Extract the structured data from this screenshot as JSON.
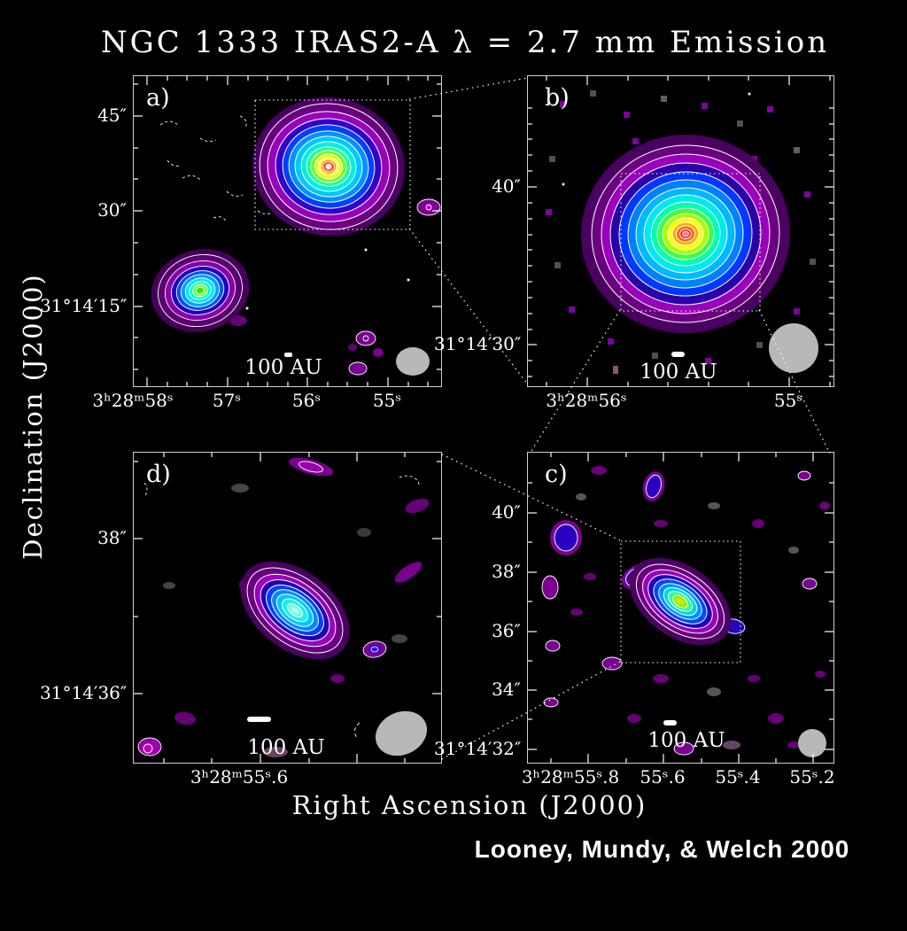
{
  "title": "NGC 1333 IRAS2-A λ = 2.7 mm Emission",
  "axes": {
    "y_label": "Declination (J2000)",
    "x_label": "Right Ascension (J2000)"
  },
  "credit": "Looney, Mundy, & Welch 2000",
  "scale_bar_label": "100 AU",
  "colors": {
    "background": "#000000",
    "frame": "#d0d0d0",
    "text": "#ffffff",
    "contour": "#ffffff",
    "beam": "#b8b8b8",
    "colormap_low_to_high": [
      "#404040",
      "#550066",
      "#7a0090",
      "#9900bb",
      "#2a00a8",
      "#0040ff",
      "#0090ff",
      "#00d0ff",
      "#00ffb0",
      "#40ff20",
      "#a8ff00",
      "#ffff00",
      "#ff9000",
      "#ff3000",
      "#ff7090",
      "#ffffff"
    ]
  },
  "panels": {
    "a": {
      "label": "a)",
      "y_ticks": [
        "45″",
        "30″",
        "31°14′15″"
      ],
      "x_ticks": [
        "3ʰ28ᵐ58ˢ",
        "57ˢ",
        "56ˢ",
        "55ˢ"
      ],
      "scale_bar": "100 AU"
    },
    "b": {
      "label": "b)",
      "y_ticks": [
        "40″",
        "31°14′30″"
      ],
      "x_ticks": [
        "3ʰ28ᵐ56ˢ",
        "55ˢ"
      ],
      "scale_bar": "100 AU"
    },
    "c": {
      "label": "c)",
      "y_ticks": [
        "40″",
        "38″",
        "36″",
        "34″",
        "31°14′32″"
      ],
      "x_ticks": [
        "3ʰ28ᵐ55ˢ.8",
        "55ˢ.6",
        "55ˢ.4",
        "55ˢ.2"
      ],
      "scale_bar": "100 AU"
    },
    "d": {
      "label": "d)",
      "y_ticks": [
        "38″",
        "31°14′36″"
      ],
      "x_ticks": [
        "3ʰ28ᵐ55ˢ.6"
      ],
      "scale_bar": "100 AU"
    }
  },
  "chart_data": [
    {
      "panel": "a",
      "type": "heatmap",
      "title": "Wide-field 2.7 mm continuum map",
      "xlabel": "Right Ascension (J2000)",
      "ylabel": "Declination (J2000)",
      "x_tick_labels": [
        "3h28m58s",
        "57s",
        "56s",
        "55s"
      ],
      "y_tick_labels": [
        "45\"",
        "30\"",
        "31d14m15s"
      ],
      "scale_bar": "100 AU",
      "features": [
        "bright compact source NE with full rainbow contour set and white core",
        "secondary source SW with green core",
        "white dashed negative-contour fragments upper left",
        "dotted inset box marking zoom region shown in panel b",
        "gray synthesized-beam ellipse lower right"
      ]
    },
    {
      "panel": "b",
      "type": "heatmap",
      "title": "Zoom of IRAS2-A (from box in a)",
      "x_tick_labels": [
        "3h28m56s",
        "55s"
      ],
      "y_tick_labels": [
        "40\"",
        "31d14m30s"
      ],
      "scale_bar": "100 AU",
      "features": [
        "single large pixelated rainbow source, red-pink core",
        "magenta/gray noise pixels scattered around",
        "dotted inset box marking zoom region shown in panel c",
        "large gray circular beam lower right"
      ]
    },
    {
      "panel": "c",
      "type": "heatmap",
      "title": "Higher-resolution zoom (from box in b)",
      "x_tick_labels": [
        "3h28m55.8s",
        "55.6s",
        "55.4s",
        "55.2s"
      ],
      "y_tick_labels": [
        "40\"",
        "38\"",
        "36\"",
        "34\"",
        "31d14m32s"
      ],
      "scale_bar": "100 AU",
      "features": [
        "elongated NW-SE source with yellow-green core",
        "many small purple/blue noise blobs with white contours",
        "dotted inset box marking zoom region shown in panel d",
        "small gray circular beam lower right"
      ]
    },
    {
      "panel": "d",
      "type": "heatmap",
      "title": "Highest-resolution zoom (from box in c)",
      "x_tick_labels": [
        "3h28m55.6s"
      ],
      "y_tick_labels": [
        "38\"",
        "31d14m36s"
      ],
      "scale_bar": "100 AU",
      "features": [
        "elongated tilted compact source, cyan core, white contours",
        "small companion blob SE",
        "purple noise smudges",
        "tilted gray beam ellipse lower right with dashed negative contour"
      ]
    }
  ]
}
